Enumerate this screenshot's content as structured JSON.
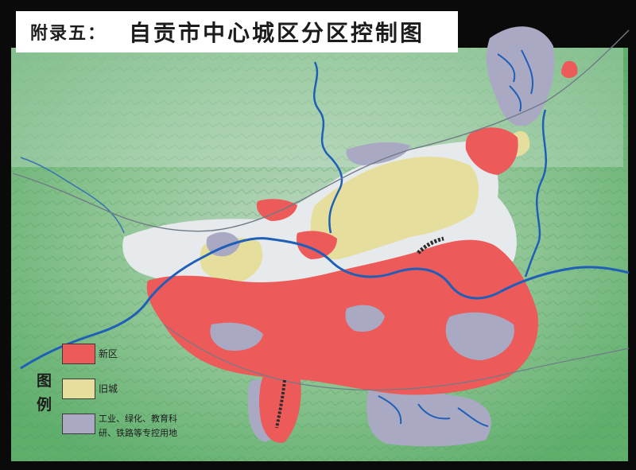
{
  "title": {
    "prefix": "附录五：",
    "main": "自贡市中心城区分区控制图"
  },
  "legend": {
    "heading": "图例",
    "items": [
      {
        "key": "new-district",
        "label": "新区",
        "color": "#ec5a5a"
      },
      {
        "key": "old-city",
        "label": "旧城",
        "color": "#e6de9c"
      },
      {
        "key": "controlled-land",
        "label_line1": "工业、绿化、教育科",
        "label_line2": "研、铁路等专控用地",
        "color": "#a9a9c3"
      }
    ]
  },
  "colors": {
    "terrain_green": "#7fbf86",
    "terrain_light": "#c9ded0",
    "river": "#1f5fb8",
    "urban_white": "#e9ecee",
    "road": "#6f7c86",
    "rail": "#2d2d2d"
  }
}
